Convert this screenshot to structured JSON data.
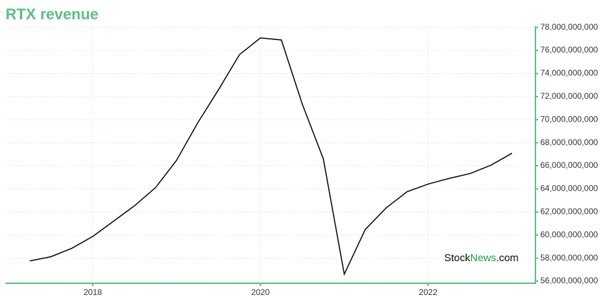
{
  "chart_data": {
    "type": "line",
    "title": "RTX revenue",
    "x": [
      2017.25,
      2017.5,
      2017.75,
      2018.0,
      2018.25,
      2018.5,
      2018.75,
      2019.0,
      2019.25,
      2019.5,
      2019.75,
      2020.0,
      2020.25,
      2020.5,
      2020.75,
      2021.0,
      2021.25,
      2021.5,
      2021.75,
      2022.0,
      2022.25,
      2022.5,
      2022.75,
      2023.0
    ],
    "values": [
      57760000000,
      58120000000,
      58850000000,
      59880000000,
      61210000000,
      62550000000,
      64120000000,
      66480000000,
      69700000000,
      72600000000,
      75640000000,
      77090000000,
      76910000000,
      71330000000,
      66610000000,
      56610000000,
      60480000000,
      62360000000,
      63760000000,
      64420000000,
      64910000000,
      65330000000,
      66060000000,
      67090000000
    ],
    "color": "#000000",
    "xlim": [
      2016.96,
      2023.28
    ],
    "xticks": [
      2018,
      2020,
      2022
    ],
    "ylim": [
      55820000000,
      78100000000
    ],
    "yticks": [
      {
        "value": 56000000000,
        "label": "56,000,000,000"
      },
      {
        "value": 58000000000,
        "label": "58,000,000,000"
      },
      {
        "value": 60000000000,
        "label": "60,000,000,000"
      },
      {
        "value": 62000000000,
        "label": "62,000,000,000"
      },
      {
        "value": 64000000000,
        "label": "64,000,000,000"
      },
      {
        "value": 66000000000,
        "label": "66,000,000,000"
      },
      {
        "value": 68000000000,
        "label": "68,000,000,000"
      },
      {
        "value": 70000000000,
        "label": "70,000,000,000"
      },
      {
        "value": 72000000000,
        "label": "72,000,000,000"
      },
      {
        "value": 74000000000,
        "label": "74,000,000,000"
      },
      {
        "value": 76000000000,
        "label": "76,000,000,000"
      },
      {
        "value": 78000000000,
        "label": "78,000,000,000"
      }
    ],
    "grid": true,
    "watermark": [
      "Stock",
      "News",
      ".com"
    ]
  }
}
